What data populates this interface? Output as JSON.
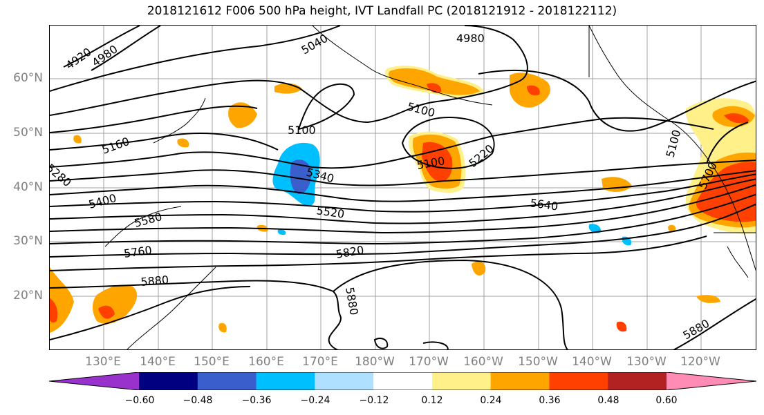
{
  "title": "2018121612 F006 500 hPa height, IVT Landfall PC (2018121912 - 2018122112)",
  "lat_labels": [
    "60°N",
    "50°N",
    "40°N",
    "30°N",
    "20°N"
  ],
  "lon_labels": [
    "130°E",
    "140°E",
    "150°E",
    "160°E",
    "170°E",
    "180°W",
    "170°W",
    "160°W",
    "150°W",
    "140°W",
    "130°W",
    "120°W"
  ],
  "contour_labels": [
    "4920",
    "4980",
    "5040",
    "4980",
    "5100",
    "5100",
    "5160",
    "5280",
    "5100",
    "5220",
    "5340",
    "5400",
    "5580",
    "5520",
    "5640",
    "5760",
    "5820",
    "5880",
    "5880",
    "5880",
    "5700",
    "5100"
  ],
  "colorbar": {
    "ticks": [
      "−0.60",
      "−0.48",
      "−0.36",
      "−0.24",
      "−0.12",
      "0.12",
      "0.24",
      "0.36",
      "0.48",
      "0.60"
    ],
    "colors": [
      "#9932cc",
      "#000080",
      "#3a5fcd",
      "#00bfff",
      "#b0e0ff",
      "#ffffff",
      "#fff08a",
      "#ffa500",
      "#ff4000",
      "#b22222",
      "#ff8cb4"
    ]
  }
}
